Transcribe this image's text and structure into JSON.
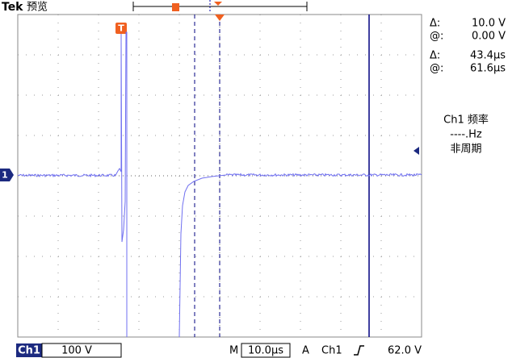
{
  "header": {
    "brand": "Tek",
    "mode": "预览"
  },
  "markers": {
    "trigger": "T",
    "channel": "1"
  },
  "readouts": [
    {
      "label": "Δ:",
      "value": "10.0 V"
    },
    {
      "label": "@:",
      "value": "0.00 V"
    },
    {
      "label": "Δ:",
      "value": "43.4µs"
    },
    {
      "label": "@:",
      "value": "61.6µs"
    }
  ],
  "measurement": {
    "title": "Ch1 频率",
    "value": "----.Hz",
    "status": "非周期"
  },
  "status_bar": {
    "channel": "Ch1",
    "scale": "100 V",
    "timebase_label": "M",
    "timebase": "10.0µs",
    "trigger_label": "A",
    "trigger_source": "Ch1",
    "trigger_level": "62.0 V"
  }
}
